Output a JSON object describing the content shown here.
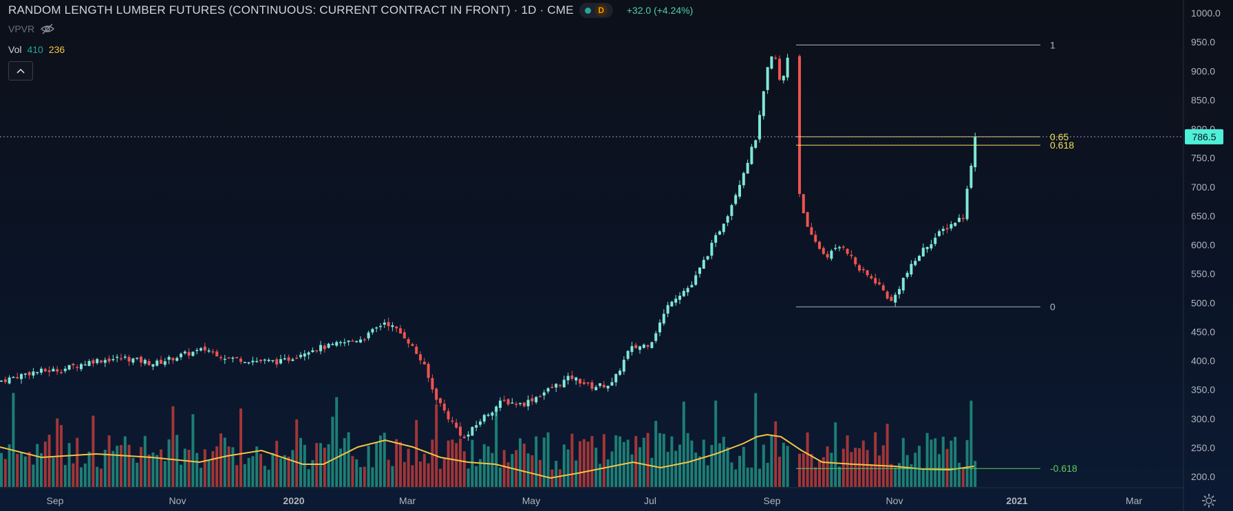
{
  "header": {
    "title": "RANDOM LENGTH LUMBER FUTURES (CONTINUOUS: CURRENT CONTRACT IN FRONT) · 1D · CME",
    "badge": "D",
    "change": "+32.0 (+4.24%)"
  },
  "indicators": {
    "vpvr_label": "VPVR",
    "vol_label": "Vol",
    "vol_value": "410",
    "vol_ma": "236"
  },
  "price_axis": {
    "ticks": [
      "1000.0",
      "950.0",
      "900.0",
      "850.0",
      "800.0",
      "750.0",
      "700.0",
      "650.0",
      "600.0",
      "550.0",
      "500.0",
      "450.0",
      "400.0",
      "350.0",
      "300.0",
      "250.0",
      "200.0"
    ],
    "current_price": "786.5"
  },
  "time_axis": {
    "labels": [
      "Sep",
      "Nov",
      "2020",
      "Mar",
      "May",
      "Jul",
      "Sep",
      "Nov",
      "2021",
      "Mar"
    ]
  },
  "fib": {
    "levels": [
      "1",
      "0.65",
      "0.618",
      "0",
      "-0.618"
    ]
  },
  "colors": {
    "up": "#7ee8d8",
    "down": "#ef5350",
    "vol_up": "#1f8a7c",
    "vol_down": "#b23a3a",
    "ma": "#f6c343",
    "fib_gold": "#f6e35a",
    "fib_green": "#5fd05a"
  },
  "chart_data": {
    "type": "candlestick",
    "title": "RANDOM LENGTH LUMBER FUTURES (CONTINUOUS: CURRENT CONTRACT IN FRONT)",
    "interval": "1D",
    "ylim": [
      200,
      1000
    ],
    "x": [
      "2019-08",
      "2019-09",
      "2019-10",
      "2019-11",
      "2019-12",
      "2020-01",
      "2020-02",
      "2020-03",
      "2020-04",
      "2020-05",
      "2020-06",
      "2020-07",
      "2020-08",
      "2020-09",
      "2020-10",
      "2020-11",
      "2020-12"
    ],
    "close": [
      365,
      378,
      390,
      398,
      410,
      425,
      465,
      345,
      270,
      330,
      360,
      520,
      760,
      880,
      560,
      500,
      786.5
    ],
    "last_price": 786.5,
    "change": 32.0,
    "change_pct": 4.24,
    "fib_retracement": {
      "level_1": 945,
      "level_0": 493,
      "level_0_65": 786.5,
      "level_0_618": 772,
      "level_neg_0_618": 214
    },
    "volume_panel": {
      "ylim": [
        200,
        400
      ],
      "ma_last": 236,
      "vol_last": 410
    }
  }
}
